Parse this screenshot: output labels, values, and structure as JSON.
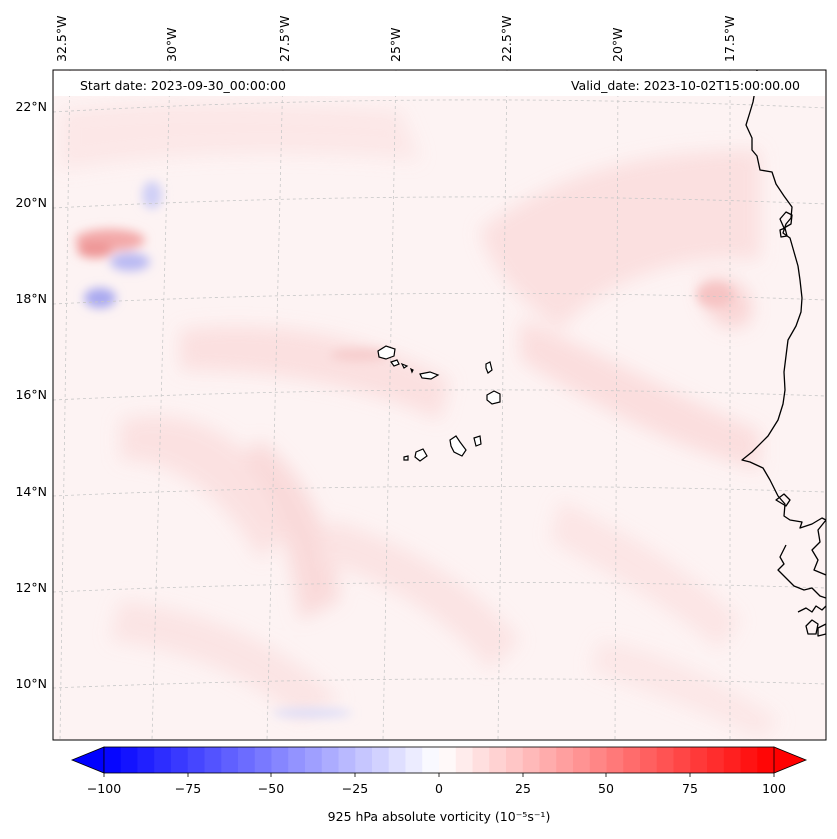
{
  "map": {
    "start_date": "Start date: 2023-09-30_00:00:00",
    "valid_date": "Valid_date: 2023-10-02T15:00:00.00",
    "lon_labels": [
      "32.5°W",
      "30°W",
      "27.5°W",
      "25°W",
      "22.5°W",
      "20°W",
      "17.5°W"
    ],
    "lat_labels": [
      "22°N",
      "20°N",
      "18°N",
      "16°N",
      "14°N",
      "12°N",
      "10°N"
    ],
    "features": [
      "coastline",
      "cape-verde-islands",
      "vorticity-field"
    ]
  },
  "colorbar": {
    "label": "925 hPa absolute vorticity (10⁻⁵s⁻¹)",
    "ticks": [
      "−100",
      "−75",
      "−50",
      "−25",
      "0",
      "25",
      "50",
      "75",
      "100"
    ],
    "vmin": -100,
    "vmax": 100,
    "step": 5,
    "cmap": "bwr",
    "low_color": "#0000ff",
    "mid_color": "#ffffff",
    "high_color": "#ff0000"
  }
}
